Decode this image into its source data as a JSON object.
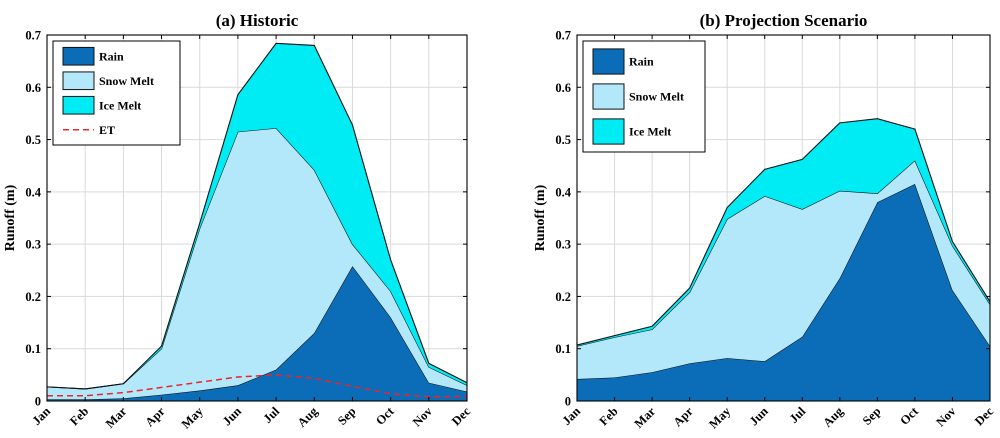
{
  "chart_data": [
    {
      "type": "area",
      "title": "(a)  Historic",
      "ylabel": "Runoff (m)",
      "xlabel": "",
      "ylim": [
        0,
        0.7
      ],
      "yticks": [
        "0",
        "0.1",
        "0.2",
        "0.3",
        "0.4",
        "0.5",
        "0.6",
        "0.7"
      ],
      "grid": true,
      "legend_placement": "top-left",
      "stacked": true,
      "categories": [
        "Jan",
        "Feb",
        "Mar",
        "Apr",
        "May",
        "Jun",
        "Jul",
        "Aug",
        "Sep",
        "Oct",
        "Nov",
        "Dec"
      ],
      "series": [
        {
          "name": "Rain",
          "color": "#0b6db8",
          "values": [
            0.003,
            0.003,
            0.005,
            0.012,
            0.02,
            0.03,
            0.06,
            0.13,
            0.258,
            0.16,
            0.035,
            0.018
          ]
        },
        {
          "name": "Snow Melt",
          "color": "#b3e8fb",
          "values": [
            0.024,
            0.02,
            0.028,
            0.088,
            0.31,
            0.485,
            0.462,
            0.312,
            0.042,
            0.05,
            0.03,
            0.012
          ]
        },
        {
          "name": "Ice Melt",
          "color": "#00ecf4",
          "values": [
            0.0,
            0.0,
            0.0,
            0.005,
            0.01,
            0.071,
            0.162,
            0.238,
            0.228,
            0.06,
            0.007,
            0.005
          ]
        }
      ],
      "lines": [
        {
          "name": "ET",
          "color": "#e8262a",
          "dashed": true,
          "values": [
            0.01,
            0.01,
            0.016,
            0.026,
            0.036,
            0.046,
            0.05,
            0.043,
            0.028,
            0.014,
            0.008,
            0.009
          ]
        }
      ]
    },
    {
      "type": "area",
      "title": "(b)  Projection Scenario",
      "ylabel": "Runoff (m)",
      "xlabel": "",
      "ylim": [
        0,
        0.7
      ],
      "yticks": [
        "0",
        "0.1",
        "0.2",
        "0.3",
        "0.4",
        "0.5",
        "0.6",
        "0.7"
      ],
      "grid": true,
      "legend_placement": "top-left",
      "stacked": true,
      "categories": [
        "Jan",
        "Feb",
        "Mar",
        "Apr",
        "May",
        "Jun",
        "Jul",
        "Aug",
        "Sep",
        "Oct",
        "Nov",
        "Dec"
      ],
      "series": [
        {
          "name": "Rain",
          "color": "#0b6db8",
          "values": [
            0.042,
            0.045,
            0.055,
            0.072,
            0.082,
            0.076,
            0.123,
            0.235,
            0.38,
            0.415,
            0.212,
            0.105
          ]
        },
        {
          "name": "Snow Melt",
          "color": "#b3e8fb",
          "values": [
            0.063,
            0.077,
            0.082,
            0.136,
            0.266,
            0.316,
            0.244,
            0.167,
            0.017,
            0.045,
            0.085,
            0.08
          ]
        },
        {
          "name": "Ice Melt",
          "color": "#00ecf4",
          "values": [
            0.002,
            0.003,
            0.006,
            0.008,
            0.022,
            0.051,
            0.095,
            0.13,
            0.143,
            0.06,
            0.008,
            0.005
          ]
        }
      ],
      "lines": []
    }
  ]
}
